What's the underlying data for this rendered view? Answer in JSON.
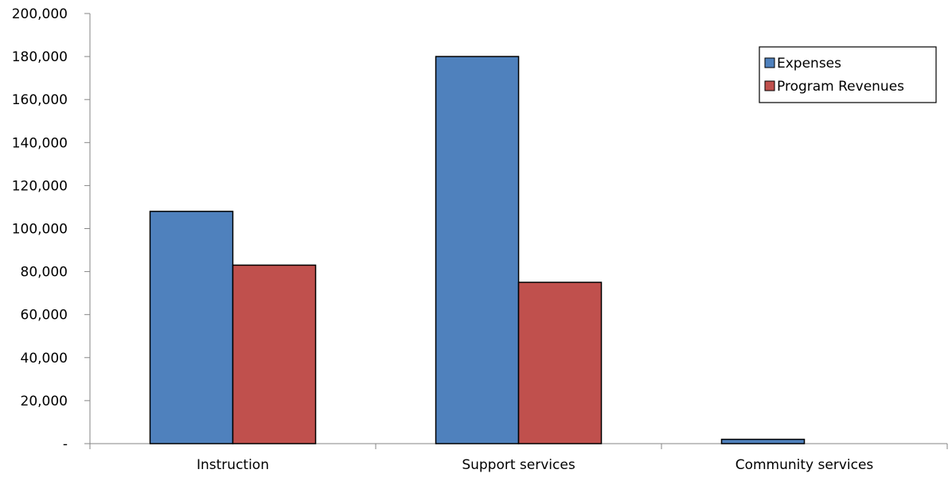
{
  "chart_data": {
    "type": "bar",
    "title": "",
    "xlabel": "",
    "ylabel": "",
    "categories": [
      "Instruction",
      "Support services",
      "Community services"
    ],
    "series": [
      {
        "name": "Expenses",
        "color": "#4F81BD",
        "values": [
          108000,
          180000,
          2000
        ]
      },
      {
        "name": "Program Revenues",
        "color": "#C0504D",
        "values": [
          83000,
          75000,
          0
        ]
      }
    ],
    "ylim": [
      0,
      200000
    ],
    "y_ticks": [
      {
        "value": 0,
        "label": "-"
      },
      {
        "value": 20000,
        "label": "20,000"
      },
      {
        "value": 40000,
        "label": "40,000"
      },
      {
        "value": 60000,
        "label": "60,000"
      },
      {
        "value": 80000,
        "label": "80,000"
      },
      {
        "value": 100000,
        "label": "100,000"
      },
      {
        "value": 120000,
        "label": "120,000"
      },
      {
        "value": 140000,
        "label": "140,000"
      },
      {
        "value": 160000,
        "label": "160,000"
      },
      {
        "value": 180000,
        "label": "180,000"
      },
      {
        "value": 200000,
        "label": "200,000"
      }
    ],
    "grid": false,
    "legend_position": "top-right"
  }
}
